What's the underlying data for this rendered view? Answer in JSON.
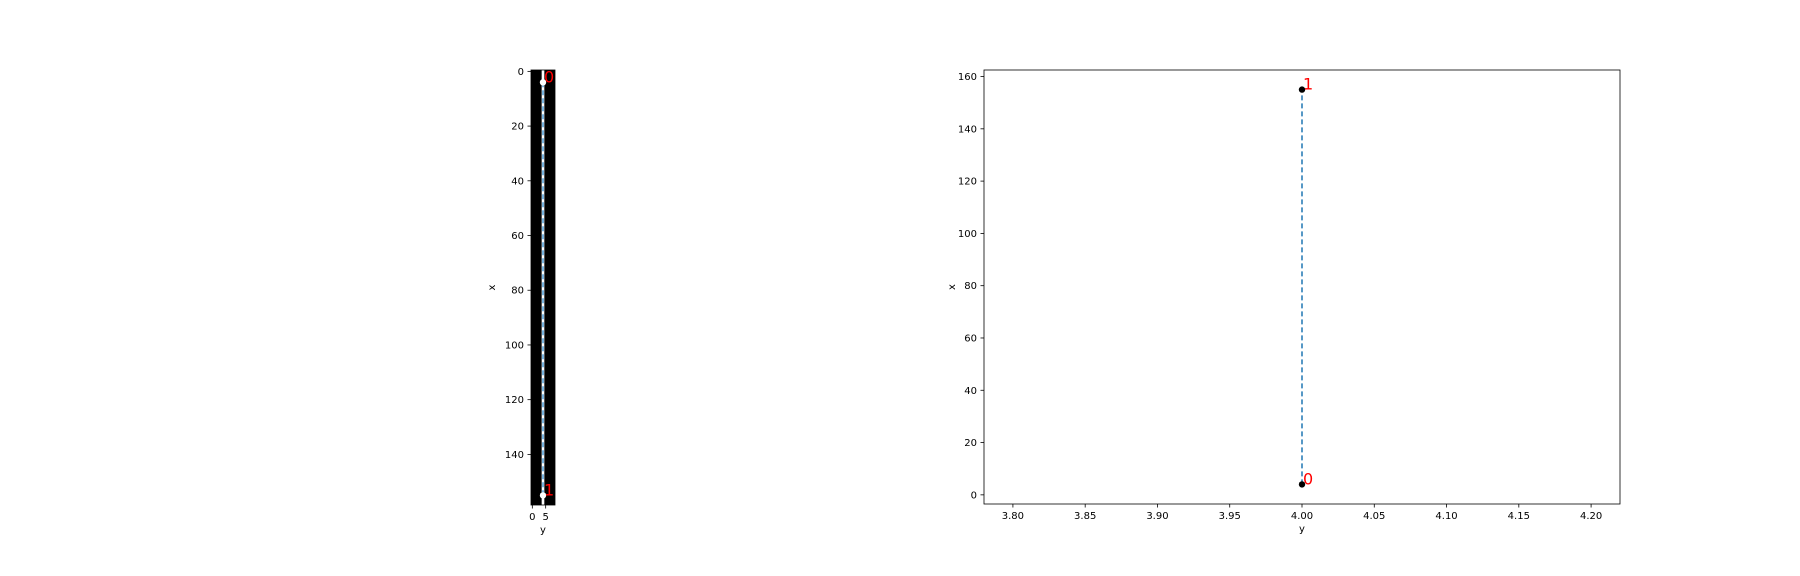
{
  "chart_data": [
    {
      "type": "scatter",
      "title": "",
      "xlabel": "y",
      "ylabel": "x",
      "background": "image",
      "xlim": [
        -0.5,
        8.5
      ],
      "ylim": [
        158.5,
        -0.5
      ],
      "y_inverted": true,
      "xticks": [
        0,
        5
      ],
      "yticks": [
        0,
        20,
        40,
        60,
        80,
        100,
        120,
        140
      ],
      "grid": false,
      "image_bg_color": "#000000",
      "image_strip_color": "#ffffff",
      "image_strip_value": 4,
      "line_color": "#4c9bd6",
      "line_style": "dashed",
      "marker_color": "#ffffff",
      "label_color": "#ff0000",
      "points": [
        {
          "label": "0",
          "x": 4,
          "y": 4
        },
        {
          "label": "1",
          "x": 4,
          "y": 155
        }
      ]
    },
    {
      "type": "scatter",
      "title": "",
      "xlabel": "y",
      "ylabel": "x",
      "xlim": [
        3.78,
        4.22
      ],
      "ylim": [
        -3.5,
        162.5
      ],
      "xticks": [
        "3.80",
        "3.85",
        "3.90",
        "3.95",
        "4.00",
        "4.05",
        "4.10",
        "4.15",
        "4.20"
      ],
      "yticks": [
        0,
        20,
        40,
        60,
        80,
        100,
        120,
        140,
        160
      ],
      "grid": false,
      "line_color": "#1f77b4",
      "line_style": "dashed",
      "marker_color": "#000000",
      "label_color": "#ff0000",
      "points": [
        {
          "label": "0",
          "x": 4,
          "y": 4
        },
        {
          "label": "1",
          "x": 4,
          "y": 155
        }
      ]
    }
  ]
}
